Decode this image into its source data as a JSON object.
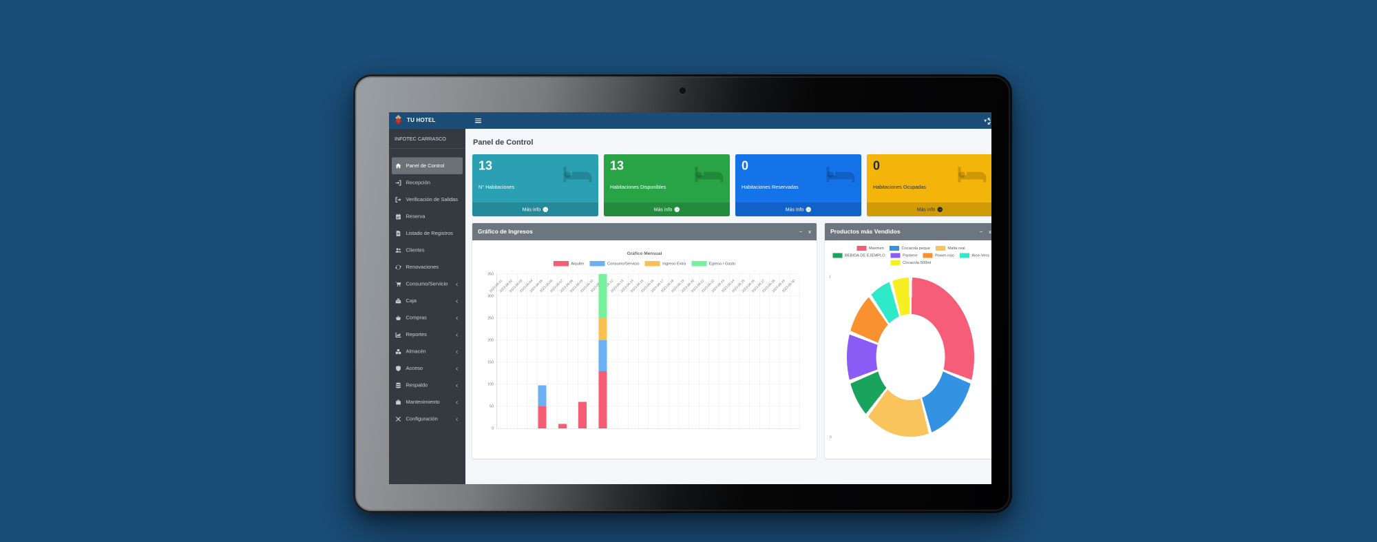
{
  "page_background": "#1a4d78",
  "navbar": {
    "brand": "TU HOTEL",
    "icons": [
      "hamburger",
      "caret-down",
      "expand"
    ],
    "caret_glyph": "▾"
  },
  "sidebar": {
    "org": "INFOTEC CARRASCO",
    "items": [
      {
        "label": "Panel de Control",
        "icon": "home",
        "active": true,
        "expandable": false
      },
      {
        "label": "Recepción",
        "icon": "sign-in",
        "active": false,
        "expandable": false
      },
      {
        "label": "Verificación de Salidas",
        "icon": "sign-out",
        "active": false,
        "expandable": false
      },
      {
        "label": "Reserva",
        "icon": "calendar",
        "active": false,
        "expandable": false
      },
      {
        "label": "Listado de Registros",
        "icon": "file",
        "active": false,
        "expandable": false
      },
      {
        "label": "Clientes",
        "icon": "users",
        "active": false,
        "expandable": false
      },
      {
        "label": "Renovaciones",
        "icon": "refresh",
        "active": false,
        "expandable": false
      },
      {
        "label": "Consumo/Servicio",
        "icon": "cart",
        "active": false,
        "expandable": true
      },
      {
        "label": "Caja",
        "icon": "cash-register",
        "active": false,
        "expandable": true
      },
      {
        "label": "Compras",
        "icon": "basket",
        "active": false,
        "expandable": true
      },
      {
        "label": "Reportes",
        "icon": "chart",
        "active": false,
        "expandable": true
      },
      {
        "label": "Almacén",
        "icon": "boxes",
        "active": false,
        "expandable": true
      },
      {
        "label": "Acceso",
        "icon": "shield",
        "active": false,
        "expandable": true
      },
      {
        "label": "Respaldo",
        "icon": "database",
        "active": false,
        "expandable": true
      },
      {
        "label": "Mantenimiento",
        "icon": "toolbox",
        "active": false,
        "expandable": true
      },
      {
        "label": "Configuración",
        "icon": "tools",
        "active": false,
        "expandable": true
      }
    ]
  },
  "content": {
    "page_title": "Panel de Control",
    "info_boxes": [
      {
        "value": "13",
        "label": "N° Habitaciones",
        "footer": "Más info",
        "arrow": "→",
        "color": "#2aa0b2",
        "dark_text": false
      },
      {
        "value": "13",
        "label": "Habitaciones Disponibles",
        "footer": "Más info",
        "arrow": "→",
        "color": "#28a446",
        "dark_text": false
      },
      {
        "value": "0",
        "label": "Habitaciones Reservadas",
        "footer": "Más info",
        "arrow": "→",
        "color": "#1473e9",
        "dark_text": false
      },
      {
        "value": "0",
        "label": "Habitaciones Ocupadas",
        "footer": "Más info",
        "arrow": "→",
        "color": "#f4b50a",
        "dark_text": true
      }
    ],
    "window_controls": {
      "minimize": "−",
      "close": "x"
    },
    "panels": [
      {
        "title": "Gráfico de Ingresos"
      },
      {
        "title": "Productos más Vendidos"
      }
    ]
  },
  "chart_data": [
    {
      "type": "bar",
      "stacked": true,
      "title": "Gráfico Mensual",
      "legend_position": "top",
      "grid": true,
      "ylim": [
        0,
        350
      ],
      "ytick_step": 50,
      "categories": [
        "2023-06-01",
        "2023-06-02",
        "2023-06-03",
        "2023-06-04",
        "2023-06-05",
        "2023-06-06",
        "2023-06-07",
        "2023-06-08",
        "2023-06-09",
        "2023-06-10",
        "2023-06-11",
        "2023-06-12",
        "2023-06-13",
        "2023-06-14",
        "2023-06-15",
        "2023-06-16",
        "2023-06-17",
        "2023-06-18",
        "2023-06-19",
        "2023-06-20",
        "2023-06-21",
        "2023-06-22",
        "2023-06-23",
        "2023-06-24",
        "2023-06-25",
        "2023-06-26",
        "2023-06-27",
        "2023-06-28",
        "2023-06-29",
        "2023-06-30"
      ],
      "series": [
        {
          "name": "Alquiler",
          "color": "#f45d73",
          "values": [
            0,
            0,
            0,
            0,
            50,
            0,
            10,
            0,
            60,
            0,
            130,
            0,
            0,
            0,
            0,
            0,
            0,
            0,
            0,
            0,
            0,
            0,
            0,
            0,
            0,
            0,
            0,
            0,
            0,
            0
          ]
        },
        {
          "name": "Consumo/Servicio",
          "color": "#6ab0f3",
          "values": [
            0,
            0,
            0,
            0,
            48,
            0,
            0,
            0,
            0,
            0,
            70,
            0,
            0,
            0,
            0,
            0,
            0,
            0,
            0,
            0,
            0,
            0,
            0,
            0,
            0,
            0,
            0,
            0,
            0,
            0
          ]
        },
        {
          "name": "Ingreso Extra",
          "color": "#f8c151",
          "values": [
            0,
            0,
            0,
            0,
            0,
            0,
            0,
            0,
            0,
            0,
            50,
            0,
            0,
            0,
            0,
            0,
            0,
            0,
            0,
            0,
            0,
            0,
            0,
            0,
            0,
            0,
            0,
            0,
            0,
            0
          ]
        },
        {
          "name": "Egreso / Gasto",
          "color": "#77f09e",
          "values": [
            0,
            0,
            0,
            0,
            0,
            0,
            0,
            0,
            0,
            0,
            100,
            0,
            0,
            0,
            0,
            0,
            0,
            0,
            0,
            0,
            0,
            0,
            0,
            0,
            0,
            0,
            0,
            0,
            0,
            0
          ]
        }
      ]
    },
    {
      "type": "pie",
      "style": "doughnut",
      "labels": [
        "Maxmen",
        "Cocacola peque",
        "Malta real",
        "BEBIDA DE EJEMPLO",
        "Pantene",
        "Power-rojo",
        "Aloe-Vera",
        "Cocacola 500ml"
      ],
      "values": [
        30,
        15,
        17,
        8,
        10,
        9,
        6,
        5
      ],
      "colors": [
        "#f65d79",
        "#3492e2",
        "#f9c45c",
        "#19a35c",
        "#8a5cf5",
        "#f9922e",
        "#2fe9c9",
        "#f8ef22"
      ],
      "legend_position": "top",
      "axis_labels": {
        "top": "1",
        "bottom": "0"
      }
    }
  ]
}
